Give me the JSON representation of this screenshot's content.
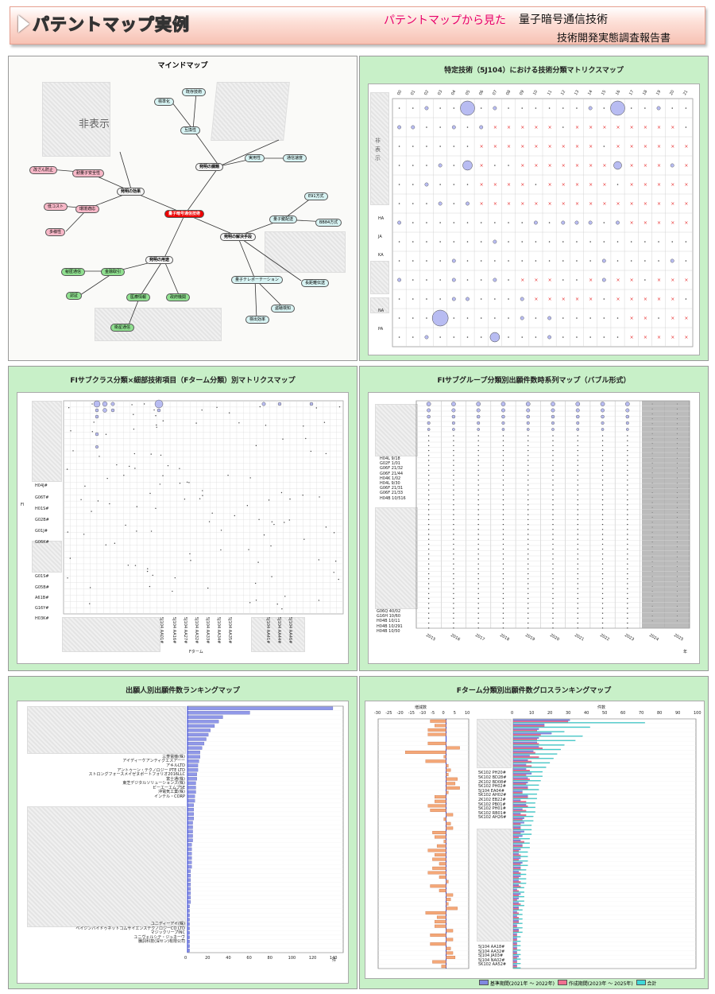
{
  "header": {
    "title": "パテントマップ実例",
    "subtitle": "パテントマップから見た",
    "report_line1": "量子暗号通信技術",
    "report_line2": "技術開発実態調査報告書"
  },
  "colors": {
    "panel_bg": "#c8f0c8",
    "bubble": "#aab0ee",
    "cross": "#e83030",
    "bar_blue": "#8088e0",
    "bar_pink": "#f0a080",
    "bar_cyan": "#40d8d8"
  },
  "panel1": {
    "title": "マインドマップ",
    "hidden_label": "非表示",
    "nodes": {
      "root": "量子暗号通信技術",
      "effect": "発明の効果",
      "problem": "発明の課題",
      "solution": "発明の解決手段",
      "use": "発明の用途",
      "n1": "既存技術",
      "n2": "標準化",
      "n3": "互換性",
      "n4": "実用性",
      "n5": "通信速度",
      "n6": "BB84方式",
      "n7": "量子鍵配送",
      "n8": "E91方式",
      "n9": "量子テレポーテーション",
      "n10": "長距離伝送",
      "n11": "盗聴検知",
      "n12": "検出効率",
      "p1": "改ざん防止",
      "p2": "耐量子安全性",
      "p3": "低コスト",
      "p4": "環境適応",
      "p5": "多様性",
      "g1": "秘匿通信",
      "g2": "金融取引",
      "g3": "認証",
      "g4": "医療情報",
      "g5": "政府機関",
      "g6": "衛星通信"
    }
  },
  "panel2": {
    "title": "特定技術（5J104）における技術分類マトリクスマップ",
    "cols": [
      "00",
      "01",
      "02",
      "03",
      "04",
      "05",
      "06",
      "07",
      "08",
      "09",
      "10",
      "11",
      "12",
      "13",
      "14",
      "15",
      "16",
      "17",
      "18",
      "19",
      "20",
      "21"
    ],
    "rows_visible": [
      "HA",
      "JA",
      "KA",
      "NA",
      "PA"
    ],
    "hidden_label": "非表示"
  },
  "panel3": {
    "title": "FIサブクラス分類×細部技術項目（Fターム分類）別マトリクスマップ",
    "ylabel": "FI",
    "xlabel": "Fターム",
    "rows": [
      "H04J#",
      "G06T#",
      "H01S#",
      "G02B#",
      "G01J#",
      "G06K#",
      "G01S#",
      "G05B#",
      "A61B#",
      "G16Y#",
      "H03K#"
    ],
    "cols": [
      "5J104 AA01#",
      "5J104 AA16#",
      "5J104 AA27#",
      "5J104 AA32#",
      "5J104 AA33#",
      "5J104 AA34#",
      "5J104 AA35#",
      "5J104 AA41#",
      "5J104 AA44#",
      "5J104 AA46#"
    ]
  },
  "panel4": {
    "title": "FIサブグループ分類別出願件数時系列マップ（バブル形式）",
    "rows_top": [
      "H04L 9/18",
      "G02F 1/01",
      "G06F 21/32",
      "G06F 21/44",
      "H04K 1/02",
      "H04L 9/30",
      "G06F 21/31",
      "G06F 21/33",
      "H04B 10/516"
    ],
    "rows_bottom": [
      "G06Q 40/02",
      "G16H 10/60",
      "H04B 10/11",
      "H04B 10/291",
      "H04B 10/50"
    ],
    "years": [
      "2015",
      "2016",
      "2017",
      "2018",
      "2019",
      "2020",
      "2021",
      "2022",
      "2023",
      "2024",
      "2025"
    ],
    "xunit": "年"
  },
  "panel5": {
    "title": "出願人別出願件数ランキングマップ",
    "names": [
      "三菱電機(株)",
      "アイディーケアンティグエスアーー",
      "アキルLTD",
      "アントゥーン・テクノロジー PTE LTD",
      "ストロングフォースメイゼヌポートフォリオ2016LLC",
      "富士通(株)",
      "東芝デジタルソリューションズ(株)",
      "ビーエーエムプSE",
      "沖電気工業(株)",
      "インテル・CORP",
      "ユニディーアイ(株)",
      "ベイジンバイドゥネットコムサイエンステクノロジーCO LTD",
      "マジックリープINC",
      "ユニヴェルシテ・ジュネーヴ",
      "騰訊科技(深セン)有限公司"
    ],
    "ticks": [
      "0",
      "20",
      "40",
      "60",
      "80",
      "100",
      "120",
      "140"
    ],
    "xunit": "件"
  },
  "panel6": {
    "title": "Fターム分類別出願件数グロスランキングマップ",
    "left_label": "増減数",
    "right_label": "件数",
    "left_ticks": [
      "-30",
      "-25",
      "-20",
      "-15",
      "-10",
      "-5",
      "0",
      "5",
      "10"
    ],
    "right_ticks": [
      "0",
      "10",
      "20",
      "30",
      "40",
      "50",
      "60",
      "70",
      "80",
      "90",
      "100"
    ],
    "labels_top": [
      "5K102 PH20#",
      "5K102 BD28#",
      "2K102 BD08#",
      "5K102 PH02#",
      "5J104 EA04#",
      "5K102 AH02#",
      "2K102 EB22#",
      "5K102 PB01#",
      "5K102 PH01#",
      "5K102 RB01#",
      "5K102 AH26#"
    ],
    "labels_bottom": [
      "5J104 AA18#",
      "5J104 AA32#",
      "5J104 JA03#",
      "5J104 NA02#",
      "5K102 AA52#"
    ],
    "legend": {
      "base": "基準期間(2021年 ～ 2022年)",
      "recent": "作成期間(2023年 ～ 2025年)",
      "total": "合計"
    }
  }
}
